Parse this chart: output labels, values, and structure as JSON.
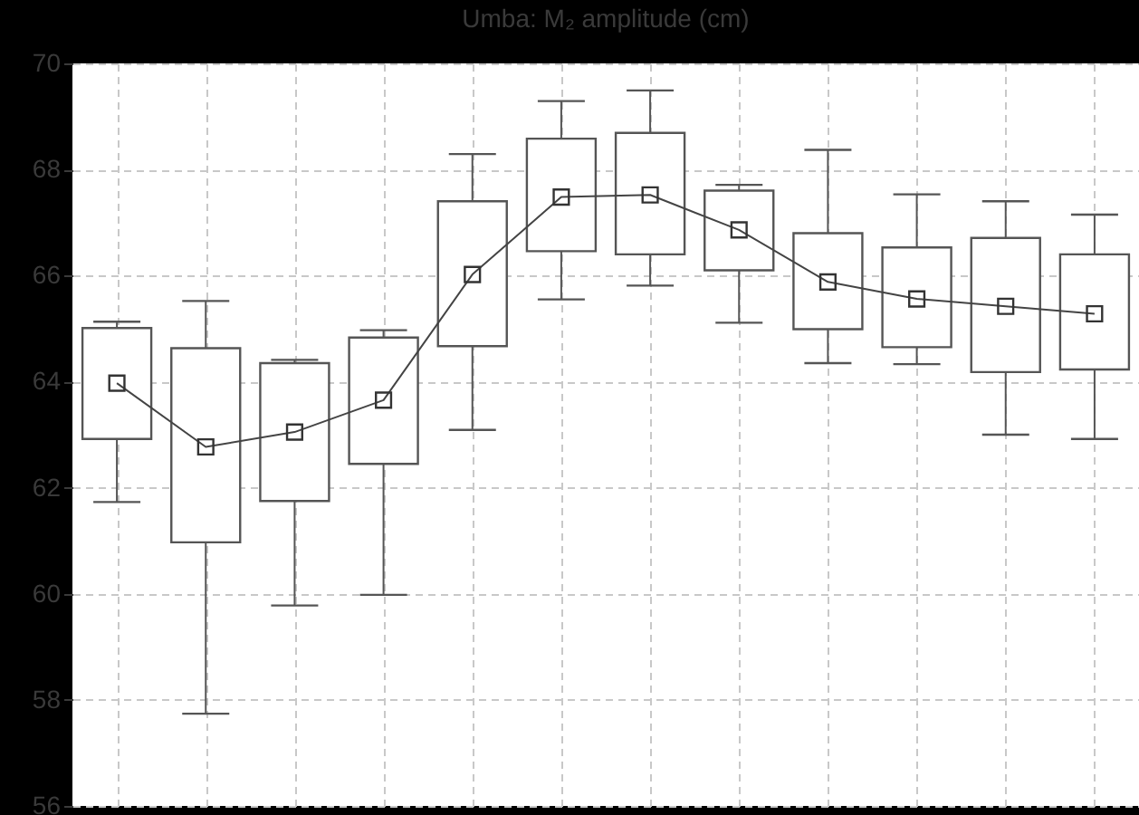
{
  "chart_data": {
    "type": "box",
    "title": "Umba: M₂ amplitude (cm)",
    "categories": [
      null,
      null,
      null,
      null,
      null,
      null,
      null,
      null,
      null,
      null,
      null,
      null
    ],
    "boxes": [
      {
        "low": 61.73,
        "q1": 62.92,
        "median": 63.97,
        "q3": 65.01,
        "high": 65.13
      },
      {
        "low": 57.74,
        "q1": 60.97,
        "median": 62.77,
        "q3": 64.63,
        "high": 65.52
      },
      {
        "low": 59.78,
        "q1": 61.75,
        "median": 63.05,
        "q3": 64.35,
        "high": 64.41
      },
      {
        "low": 59.98,
        "q1": 62.45,
        "median": 63.65,
        "q3": 64.83,
        "high": 64.97
      },
      {
        "low": 63.09,
        "q1": 64.67,
        "median": 66.02,
        "q3": 67.4,
        "high": 68.29
      },
      {
        "low": 65.55,
        "q1": 66.46,
        "median": 67.48,
        "q3": 68.58,
        "high": 69.29
      },
      {
        "low": 65.81,
        "q1": 66.4,
        "median": 67.52,
        "q3": 68.69,
        "high": 69.49
      },
      {
        "low": 65.11,
        "q1": 66.1,
        "median": 66.86,
        "q3": 67.6,
        "high": 67.71
      },
      {
        "low": 64.35,
        "q1": 64.99,
        "median": 65.88,
        "q3": 66.8,
        "high": 68.37
      },
      {
        "low": 64.33,
        "q1": 64.65,
        "median": 65.56,
        "q3": 66.53,
        "high": 67.53
      },
      {
        "low": 63.0,
        "q1": 64.18,
        "median": 65.42,
        "q3": 66.71,
        "high": 67.4
      },
      {
        "low": 62.92,
        "q1": 64.23,
        "median": 65.28,
        "q3": 66.4,
        "high": 67.15
      }
    ],
    "series": [
      {
        "type": "line",
        "color": "#444444",
        "line_style": "solid",
        "marker": "none",
        "values": [
          63.97,
          62.77,
          63.05,
          63.65,
          66.02,
          67.48,
          67.52,
          66.86,
          65.88,
          65.56,
          65.42,
          65.28
        ]
      }
    ],
    "ylim": [
      56,
      70
    ],
    "yticks": [
      56,
      58,
      60,
      62,
      64,
      66,
      68,
      70
    ],
    "grid": true,
    "tick_labels": "y",
    "marker": "square"
  }
}
